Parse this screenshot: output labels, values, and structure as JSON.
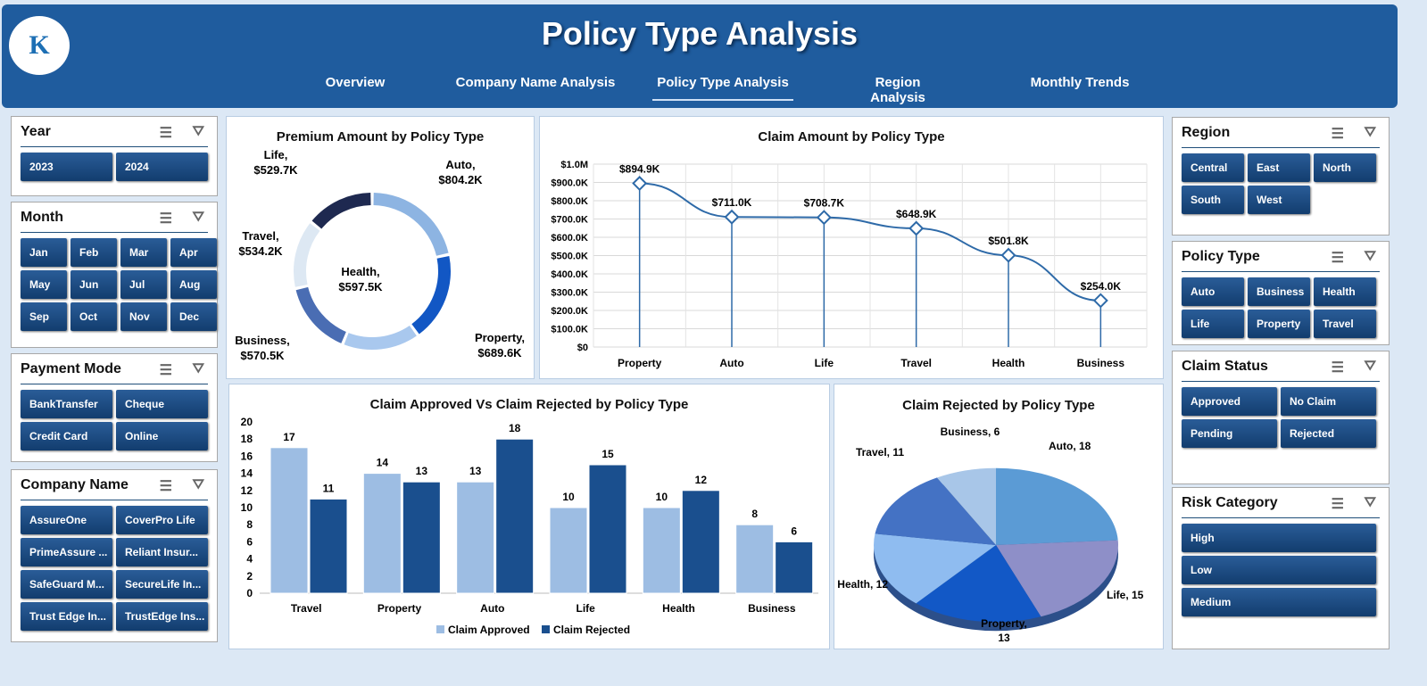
{
  "header": {
    "title": "Policy Type Analysis",
    "logo_text": "K",
    "nav": [
      "Overview",
      "Company Name Analysis",
      "Policy Type Analysis",
      "Region Analysis",
      "Monthly Trends"
    ],
    "active_nav": "Policy Type Analysis"
  },
  "slicers": {
    "year": {
      "title": "Year",
      "items": [
        "2023",
        "2024"
      ]
    },
    "month": {
      "title": "Month",
      "items": [
        "Jan",
        "Feb",
        "Mar",
        "Apr",
        "May",
        "Jun",
        "Jul",
        "Aug",
        "Sep",
        "Oct",
        "Nov",
        "Dec"
      ]
    },
    "payment": {
      "title": "Payment Mode",
      "items": [
        "BankTransfer",
        "Cheque",
        "Credit Card",
        "Online"
      ]
    },
    "company": {
      "title": "Company Name",
      "items": [
        "AssureOne",
        "CoverPro Life",
        "PrimeAssure ...",
        "Reliant Insur...",
        "SafeGuard M...",
        "SecureLife In...",
        "Trust Edge In...",
        "TrustEdge Ins..."
      ]
    },
    "region": {
      "title": "Region",
      "items": [
        "Central",
        "East",
        "North",
        "South",
        "West"
      ]
    },
    "policy": {
      "title": "Policy Type",
      "items": [
        "Auto",
        "Business",
        "Health",
        "Life",
        "Property",
        "Travel"
      ]
    },
    "claim_status": {
      "title": "Claim Status",
      "items": [
        "Approved",
        "No Claim",
        "Pending",
        "Rejected"
      ]
    },
    "risk": {
      "title": "Risk Category",
      "items": [
        "High",
        "Low",
        "Medium"
      ]
    }
  },
  "chart_data": [
    {
      "type": "pie",
      "variant": "donut",
      "title": "Premium Amount by Policy Type",
      "categories": [
        "Auto",
        "Property",
        "Health",
        "Business",
        "Travel",
        "Life"
      ],
      "values": [
        804.2,
        689.6,
        597.5,
        570.5,
        534.2,
        529.7
      ],
      "labels": [
        "$804.2K",
        "$689.6K",
        "$597.5K",
        "$570.5K",
        "$534.2K",
        "$529.7K"
      ],
      "colors": [
        "#8db4e2",
        "#1257c4",
        "#a9c8ee",
        "#4a6db3",
        "#dde8f3",
        "#1e2950"
      ]
    },
    {
      "type": "line",
      "title": "Claim Amount by Policy Type",
      "categories": [
        "Property",
        "Auto",
        "Life",
        "Travel",
        "Health",
        "Business"
      ],
      "values": [
        894.9,
        711.0,
        708.7,
        648.9,
        501.8,
        254.0
      ],
      "labels": [
        "$894.9K",
        "$711.0K",
        "$708.7K",
        "$648.9K",
        "$501.8K",
        "$254.0K"
      ],
      "yticks": [
        "$0",
        "$100.0K",
        "$200.0K",
        "$300.0K",
        "$400.0K",
        "$500.0K",
        "$600.0K",
        "$700.0K",
        "$800.0K",
        "$900.0K",
        "$1.0M"
      ],
      "ylim": [
        0,
        1000
      ],
      "grid": true
    },
    {
      "type": "bar",
      "title": "Claim Approved Vs Claim Rejected by Policy Type",
      "categories": [
        "Travel",
        "Property",
        "Auto",
        "Life",
        "Health",
        "Business"
      ],
      "series": [
        {
          "name": "Claim Approved",
          "values": [
            17,
            14,
            13,
            10,
            10,
            8
          ],
          "color": "#9dbde3"
        },
        {
          "name": "Claim Rejected",
          "values": [
            11,
            13,
            18,
            15,
            12,
            6
          ],
          "color": "#1a4f8e"
        }
      ],
      "yticks": [
        "0",
        "2",
        "4",
        "6",
        "8",
        "10",
        "12",
        "14",
        "16",
        "18",
        "20"
      ],
      "ylim": [
        0,
        20
      ],
      "legend": "bottom"
    },
    {
      "type": "pie",
      "title": "Claim Rejected by Policy Type",
      "categories": [
        "Auto",
        "Life",
        "Property",
        "Health",
        "Travel",
        "Business"
      ],
      "values": [
        18,
        15,
        13,
        12,
        11,
        6
      ],
      "labels": [
        "Auto, 18",
        "Life, 15",
        "Property, 13",
        "Health, 12",
        "Travel, 11",
        "Business, 6"
      ],
      "colors": [
        "#5b9bd5",
        "#8e8fc8",
        "#1258c6",
        "#8fbcf0",
        "#4472c4",
        "#a8c6e8"
      ]
    }
  ]
}
